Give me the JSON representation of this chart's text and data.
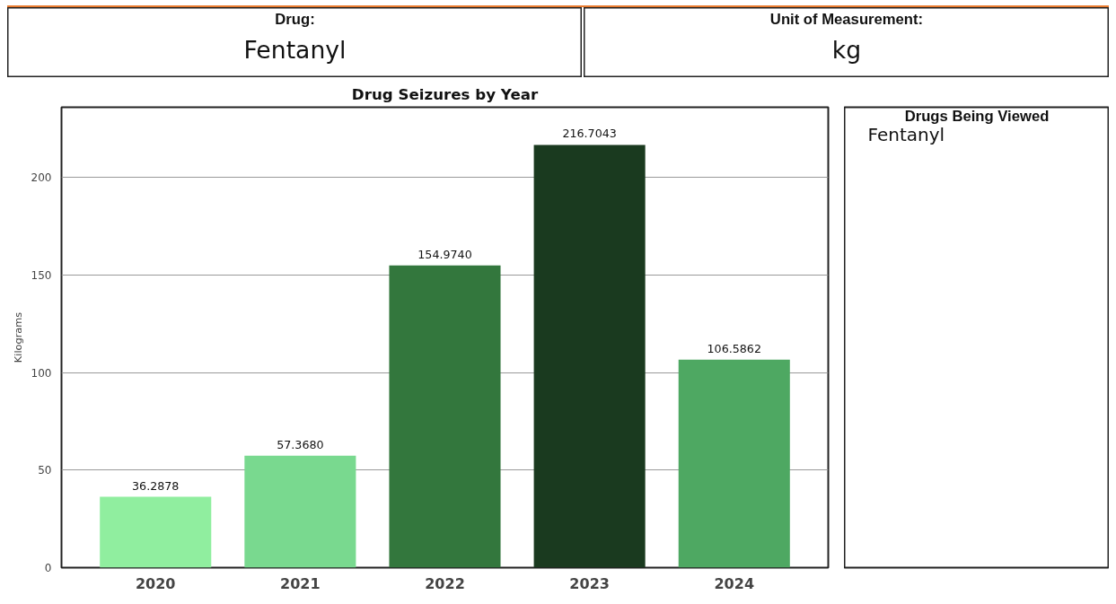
{
  "chart_data": [
    {
      "type": "other",
      "title": "Drug:",
      "annotations": [
        "Fentanyl"
      ]
    },
    {
      "type": "other",
      "title": "Unit of Measurement:",
      "annotations": [
        "kg"
      ]
    },
    {
      "type": "bar",
      "title": "Drug Seizures by Year",
      "ylabel": "Kilograms",
      "categories": [
        "2020",
        "2021",
        "2022",
        "2023",
        "2024"
      ],
      "values": [
        36.2878,
        57.368,
        154.974,
        216.7043,
        106.5862
      ],
      "colors": [
        "#90ee9f",
        "#79d98f",
        "#33773d",
        "#1a3a1f",
        "#4ea862"
      ],
      "value_labels": [
        "36.2878",
        "57.3680",
        "154.9740",
        "216.7043",
        "106.5862"
      ],
      "ylim": [
        0,
        236
      ],
      "yticks": [
        0,
        50,
        100,
        150,
        200
      ],
      "grid": "y"
    },
    {
      "type": "other",
      "title": "Drugs Being Viewed",
      "annotations": [
        "Fentanyl"
      ]
    }
  ]
}
